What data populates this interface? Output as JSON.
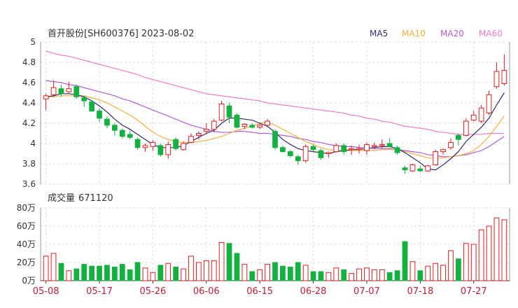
{
  "header": {
    "title": "首开股份[SH600376] 2023-08-02",
    "legend": [
      {
        "label": "MA5",
        "color": "#2b2d6e"
      },
      {
        "label": "MA10",
        "color": "#f5b041"
      },
      {
        "label": "MA20",
        "color": "#b05cd8"
      },
      {
        "label": "MA60",
        "color": "#f07cc4"
      }
    ]
  },
  "volume_header": {
    "label": "成交量",
    "value": "671120"
  },
  "colors": {
    "up": "#e02020",
    "down": "#14b040",
    "grid": "#dcdcdc",
    "axis": "#333333",
    "date_text": "#c0203a"
  },
  "chart_data": [
    {
      "type": "candlestick",
      "title": "首开股份[SH600376] 2023-08-02",
      "ylim": [
        3.6,
        5.0
      ],
      "yticks": [
        "3.6",
        "3.8",
        "4",
        "4.2",
        "4.4",
        "4.6",
        "4.8",
        "5"
      ],
      "ytick_values": [
        3.6,
        3.8,
        4.0,
        4.2,
        4.4,
        4.6,
        4.8,
        5.0
      ],
      "x_labels": [
        {
          "index": 0,
          "label": "05-08"
        },
        {
          "index": 7,
          "label": "05-17"
        },
        {
          "index": 14,
          "label": "05-26"
        },
        {
          "index": 21,
          "label": "06-06"
        },
        {
          "index": 28,
          "label": "06-15"
        },
        {
          "index": 35,
          "label": "06-28"
        },
        {
          "index": 42,
          "label": "07-07"
        },
        {
          "index": 49,
          "label": "07-18"
        },
        {
          "index": 56,
          "label": "07-27"
        }
      ],
      "candles": [
        {
          "o": 4.44,
          "h": 4.49,
          "l": 4.33,
          "c": 4.47,
          "up": true
        },
        {
          "o": 4.48,
          "h": 4.62,
          "l": 4.46,
          "c": 4.55,
          "up": true
        },
        {
          "o": 4.54,
          "h": 4.58,
          "l": 4.46,
          "c": 4.49,
          "up": false
        },
        {
          "o": 4.51,
          "h": 4.61,
          "l": 4.49,
          "c": 4.54,
          "up": true
        },
        {
          "o": 4.56,
          "h": 4.58,
          "l": 4.44,
          "c": 4.46,
          "up": false
        },
        {
          "o": 4.45,
          "h": 4.47,
          "l": 4.36,
          "c": 4.42,
          "up": false
        },
        {
          "o": 4.41,
          "h": 4.43,
          "l": 4.31,
          "c": 4.32,
          "up": false
        },
        {
          "o": 4.32,
          "h": 4.35,
          "l": 4.21,
          "c": 4.25,
          "up": false
        },
        {
          "o": 4.24,
          "h": 4.27,
          "l": 4.15,
          "c": 4.18,
          "up": false
        },
        {
          "o": 4.18,
          "h": 4.2,
          "l": 4.08,
          "c": 4.13,
          "up": false
        },
        {
          "o": 4.13,
          "h": 4.15,
          "l": 4.05,
          "c": 4.07,
          "up": false
        },
        {
          "o": 4.09,
          "h": 4.12,
          "l": 4.04,
          "c": 4.06,
          "up": false
        },
        {
          "o": 4.04,
          "h": 4.06,
          "l": 3.94,
          "c": 3.96,
          "up": false
        },
        {
          "o": 3.96,
          "h": 4.0,
          "l": 3.92,
          "c": 3.98,
          "up": true
        },
        {
          "o": 3.97,
          "h": 4.03,
          "l": 3.93,
          "c": 4.01,
          "up": true
        },
        {
          "o": 3.98,
          "h": 4.0,
          "l": 3.87,
          "c": 3.89,
          "up": false
        },
        {
          "o": 3.89,
          "h": 4.02,
          "l": 3.85,
          "c": 3.99,
          "up": true
        },
        {
          "o": 4.04,
          "h": 4.06,
          "l": 3.93,
          "c": 3.95,
          "up": false
        },
        {
          "o": 3.94,
          "h": 4.02,
          "l": 3.93,
          "c": 4.0,
          "up": true
        },
        {
          "o": 4.01,
          "h": 4.1,
          "l": 4.0,
          "c": 4.07,
          "up": true
        },
        {
          "o": 4.08,
          "h": 4.12,
          "l": 4.04,
          "c": 4.1,
          "up": true
        },
        {
          "o": 4.12,
          "h": 4.2,
          "l": 4.09,
          "c": 4.14,
          "up": true
        },
        {
          "o": 4.14,
          "h": 4.24,
          "l": 4.11,
          "c": 4.22,
          "up": true
        },
        {
          "o": 4.23,
          "h": 4.42,
          "l": 4.22,
          "c": 4.39,
          "up": true
        },
        {
          "o": 4.37,
          "h": 4.4,
          "l": 4.2,
          "c": 4.26,
          "up": false
        },
        {
          "o": 4.28,
          "h": 4.3,
          "l": 4.15,
          "c": 4.16,
          "up": false
        },
        {
          "o": 4.17,
          "h": 4.2,
          "l": 4.14,
          "c": 4.19,
          "up": true
        },
        {
          "o": 4.18,
          "h": 4.2,
          "l": 4.15,
          "c": 4.16,
          "up": false
        },
        {
          "o": 4.16,
          "h": 4.2,
          "l": 4.14,
          "c": 4.18,
          "up": true
        },
        {
          "o": 4.18,
          "h": 4.24,
          "l": 4.16,
          "c": 4.22,
          "up": true
        },
        {
          "o": 4.12,
          "h": 4.14,
          "l": 3.94,
          "c": 3.96,
          "up": false
        },
        {
          "o": 3.96,
          "h": 3.98,
          "l": 3.91,
          "c": 3.92,
          "up": false
        },
        {
          "o": 3.92,
          "h": 3.94,
          "l": 3.86,
          "c": 3.88,
          "up": false
        },
        {
          "o": 3.87,
          "h": 3.89,
          "l": 3.79,
          "c": 3.83,
          "up": false
        },
        {
          "o": 3.83,
          "h": 3.99,
          "l": 3.81,
          "c": 3.97,
          "up": true
        },
        {
          "o": 3.97,
          "h": 3.99,
          "l": 3.92,
          "c": 3.94,
          "up": false
        },
        {
          "o": 3.93,
          "h": 3.95,
          "l": 3.84,
          "c": 3.86,
          "up": false
        },
        {
          "o": 3.9,
          "h": 3.92,
          "l": 3.86,
          "c": 3.91,
          "up": true
        },
        {
          "o": 3.92,
          "h": 4.0,
          "l": 3.91,
          "c": 3.98,
          "up": true
        },
        {
          "o": 3.98,
          "h": 4.0,
          "l": 3.89,
          "c": 3.92,
          "up": false
        },
        {
          "o": 3.94,
          "h": 3.98,
          "l": 3.89,
          "c": 3.95,
          "up": true
        },
        {
          "o": 3.94,
          "h": 3.99,
          "l": 3.9,
          "c": 3.95,
          "up": true
        },
        {
          "o": 3.93,
          "h": 4.01,
          "l": 3.89,
          "c": 3.99,
          "up": true
        },
        {
          "o": 3.97,
          "h": 4.01,
          "l": 3.95,
          "c": 3.98,
          "up": true
        },
        {
          "o": 3.98,
          "h": 4.04,
          "l": 3.95,
          "c": 3.99,
          "up": true
        },
        {
          "o": 4.0,
          "h": 4.05,
          "l": 3.96,
          "c": 3.97,
          "up": false
        },
        {
          "o": 3.96,
          "h": 3.98,
          "l": 3.89,
          "c": 3.91,
          "up": false
        },
        {
          "o": 3.76,
          "h": 3.78,
          "l": 3.7,
          "c": 3.74,
          "up": false
        },
        {
          "o": 3.73,
          "h": 3.8,
          "l": 3.72,
          "c": 3.79,
          "up": true
        },
        {
          "o": 3.75,
          "h": 3.78,
          "l": 3.72,
          "c": 3.73,
          "up": false
        },
        {
          "o": 3.73,
          "h": 3.79,
          "l": 3.72,
          "c": 3.78,
          "up": true
        },
        {
          "o": 3.79,
          "h": 3.94,
          "l": 3.78,
          "c": 3.92,
          "up": true
        },
        {
          "o": 3.92,
          "h": 3.95,
          "l": 3.89,
          "c": 3.94,
          "up": true
        },
        {
          "o": 3.96,
          "h": 4.05,
          "l": 3.94,
          "c": 4.01,
          "up": true
        },
        {
          "o": 4.04,
          "h": 4.1,
          "l": 3.98,
          "c": 4.08,
          "up": false
        },
        {
          "o": 4.08,
          "h": 4.25,
          "l": 4.07,
          "c": 4.22,
          "up": true
        },
        {
          "o": 4.23,
          "h": 4.32,
          "l": 4.22,
          "c": 4.28,
          "up": true
        },
        {
          "o": 4.22,
          "h": 4.38,
          "l": 4.2,
          "c": 4.35,
          "up": true
        },
        {
          "o": 4.3,
          "h": 4.52,
          "l": 4.28,
          "c": 4.48,
          "up": true
        },
        {
          "o": 4.56,
          "h": 4.8,
          "l": 4.54,
          "c": 4.71,
          "up": true
        },
        {
          "o": 4.59,
          "h": 4.88,
          "l": 4.57,
          "c": 4.72,
          "up": true
        }
      ],
      "ma5": [
        4.46,
        4.47,
        4.49,
        4.49,
        4.48,
        4.46,
        4.42,
        4.37,
        4.31,
        4.24,
        4.18,
        4.14,
        4.09,
        4.04,
        3.99,
        3.96,
        3.96,
        3.96,
        3.98,
        4.02,
        4.06,
        4.1,
        4.13,
        4.2,
        4.25,
        4.25,
        4.24,
        4.23,
        4.2,
        4.17,
        4.11,
        4.04,
        3.99,
        3.95,
        3.93,
        3.92,
        3.91,
        3.9,
        3.92,
        3.93,
        3.94,
        3.94,
        3.95,
        3.96,
        3.97,
        3.97,
        3.95,
        3.91,
        3.86,
        3.81,
        3.75,
        3.74,
        3.79,
        3.85,
        3.92,
        4.02,
        4.09,
        4.16,
        4.25,
        4.38,
        4.5
      ],
      "ma10": [
        4.46,
        4.46,
        4.47,
        4.47,
        4.47,
        4.47,
        4.45,
        4.43,
        4.4,
        4.36,
        4.32,
        4.28,
        4.23,
        4.17,
        4.11,
        4.07,
        4.04,
        4.02,
        4.01,
        4.01,
        4.02,
        4.03,
        4.05,
        4.07,
        4.1,
        4.13,
        4.15,
        4.17,
        4.2,
        4.21,
        4.18,
        4.14,
        4.1,
        4.06,
        4.02,
        3.99,
        3.96,
        3.94,
        3.93,
        3.93,
        3.93,
        3.93,
        3.93,
        3.93,
        3.94,
        3.94,
        3.94,
        3.92,
        3.9,
        3.88,
        3.86,
        3.85,
        3.86,
        3.87,
        3.88,
        3.9,
        3.93,
        3.99,
        4.07,
        4.17,
        4.27
      ],
      "ma20": [
        4.62,
        4.61,
        4.6,
        4.58,
        4.57,
        4.55,
        4.53,
        4.51,
        4.49,
        4.47,
        4.44,
        4.42,
        4.39,
        4.36,
        4.33,
        4.3,
        4.27,
        4.24,
        4.21,
        4.18,
        4.16,
        4.14,
        4.12,
        4.11,
        4.11,
        4.12,
        4.12,
        4.11,
        4.1,
        4.1,
        4.09,
        4.08,
        4.07,
        4.05,
        4.04,
        4.02,
        4.01,
        3.99,
        3.98,
        3.97,
        3.97,
        3.96,
        3.96,
        3.95,
        3.95,
        3.95,
        3.94,
        3.93,
        3.92,
        3.91,
        3.89,
        3.88,
        3.87,
        3.87,
        3.88,
        3.89,
        3.91,
        3.93,
        3.97,
        4.02,
        4.07
      ],
      "ma60": [
        4.91,
        4.89,
        4.87,
        4.86,
        4.84,
        4.82,
        4.8,
        4.78,
        4.76,
        4.74,
        4.72,
        4.7,
        4.68,
        4.65,
        4.63,
        4.61,
        4.59,
        4.57,
        4.55,
        4.53,
        4.51,
        4.49,
        4.48,
        4.47,
        4.46,
        4.45,
        4.44,
        4.43,
        4.42,
        4.4,
        4.39,
        4.38,
        4.37,
        4.36,
        4.35,
        4.34,
        4.33,
        4.32,
        4.31,
        4.3,
        4.28,
        4.27,
        4.25,
        4.24,
        4.22,
        4.21,
        4.19,
        4.17,
        4.16,
        4.15,
        4.14,
        4.12,
        4.11,
        4.1,
        4.09,
        4.09,
        4.09,
        4.09,
        4.1,
        4.1,
        4.1
      ]
    },
    {
      "type": "bar",
      "title": "成交量 671120",
      "ylim": [
        0,
        80
      ],
      "yticks": [
        "0万",
        "20万",
        "40万",
        "60万",
        "80万"
      ],
      "ytick_values": [
        0,
        20,
        40,
        60,
        80
      ],
      "values": [
        27,
        30,
        19,
        11,
        13,
        18,
        16,
        16,
        17,
        15,
        18,
        12,
        20,
        14,
        9,
        17,
        19,
        15,
        13,
        27,
        20,
        22,
        22,
        42,
        41,
        30,
        18,
        10,
        12,
        18,
        20,
        16,
        15,
        20,
        17,
        10,
        10,
        9,
        14,
        12,
        8,
        13,
        14,
        12,
        12,
        9,
        11,
        43,
        21,
        11,
        16,
        19,
        17,
        33,
        24,
        41,
        40,
        56,
        60,
        69,
        67
      ],
      "up": [
        true,
        true,
        false,
        true,
        false,
        false,
        false,
        false,
        false,
        false,
        false,
        false,
        false,
        true,
        true,
        false,
        true,
        false,
        true,
        true,
        true,
        true,
        true,
        true,
        false,
        false,
        true,
        false,
        true,
        true,
        false,
        false,
        false,
        false,
        true,
        false,
        false,
        true,
        true,
        false,
        true,
        true,
        true,
        true,
        true,
        false,
        false,
        false,
        true,
        false,
        true,
        true,
        true,
        true,
        false,
        true,
        true,
        true,
        true,
        true,
        true
      ]
    }
  ]
}
